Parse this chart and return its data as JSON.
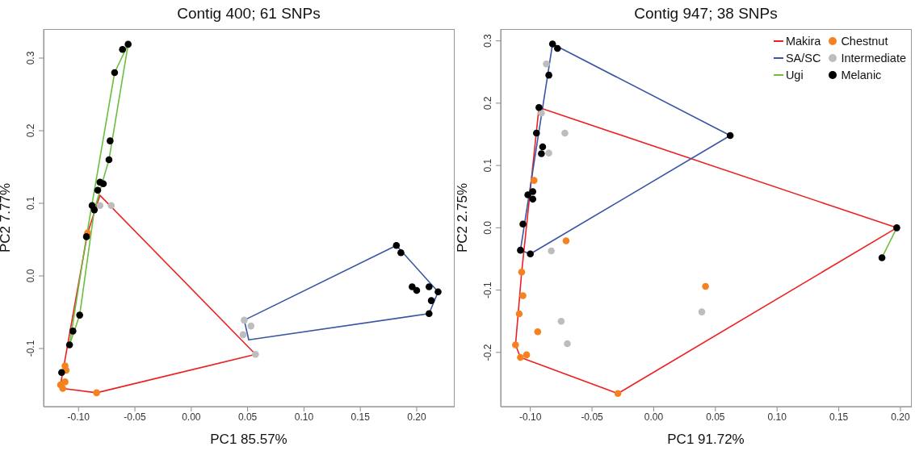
{
  "chart_data": [
    {
      "type": "scatter",
      "title": "Contig 400; 61 SNPs",
      "xlabel": "PC1 85.57%",
      "ylabel": "PC2 7.77%",
      "marker": "circle",
      "legend": false,
      "xlim": [
        -0.131,
        0.233
      ],
      "ylim": [
        -0.18,
        0.34
      ],
      "xticks": [
        {
          "value": -0.1,
          "label": "-0.10"
        },
        {
          "value": -0.05,
          "label": "-0.05"
        },
        {
          "value": 0,
          "label": "0.00"
        },
        {
          "value": 0.05,
          "label": "0.05"
        },
        {
          "value": 0.1,
          "label": "0.10"
        },
        {
          "value": 0.15,
          "label": "0.15"
        },
        {
          "value": 0.2,
          "label": "0.20"
        }
      ],
      "yticks": [
        -0.1,
        {
          "value": 0,
          "label": "0.0"
        },
        0.1,
        0.2,
        0.3
      ],
      "series": [
        {
          "color": "#f5821f",
          "x": [
            -0.092,
            -0.112,
            -0.111,
            -0.112,
            -0.116,
            -0.114,
            -0.084
          ],
          "values": [
            0.059,
            -0.124,
            -0.13,
            -0.146,
            -0.15,
            -0.155,
            -0.161
          ]
        },
        {
          "color": "#bdbdbd",
          "x": [
            -0.081,
            -0.071,
            0.047,
            0.053,
            0.046,
            0.057
          ],
          "values": [
            0.097,
            0.097,
            -0.061,
            -0.069,
            -0.081,
            -0.108
          ]
        },
        {
          "color": "#000000",
          "x": [
            -0.056,
            -0.061,
            -0.068,
            -0.072,
            -0.073,
            -0.081,
            -0.078,
            -0.083,
            -0.088,
            -0.086,
            -0.093,
            -0.099,
            -0.105,
            -0.108,
            -0.115,
            0.182,
            0.186,
            0.196,
            0.2,
            0.211,
            0.219,
            0.213,
            0.211
          ],
          "values": [
            0.319,
            0.312,
            0.28,
            0.186,
            0.16,
            0.129,
            0.127,
            0.118,
            0.097,
            0.091,
            0.054,
            -0.054,
            -0.076,
            -0.095,
            -0.133,
            0.042,
            0.032,
            -0.015,
            -0.02,
            -0.015,
            -0.022,
            -0.034,
            -0.052
          ]
        },
        {
          "type": "line",
          "marker": "none",
          "color": "#ee2020",
          "x": [
            -0.116,
            -0.092,
            -0.081,
            0.057
          ],
          "values": [
            -0.15,
            0.059,
            0.111,
            -0.108
          ]
        },
        {
          "type": "line",
          "marker": "none",
          "color": "#ee2020",
          "x": [
            -0.116,
            -0.114,
            -0.084,
            0.057
          ],
          "values": [
            -0.15,
            -0.155,
            -0.161,
            -0.108
          ]
        },
        {
          "type": "line",
          "marker": "none",
          "color": "#3a55a4",
          "x": [
            0.047,
            0.182,
            0.219
          ],
          "values": [
            -0.061,
            0.042,
            -0.022
          ]
        },
        {
          "type": "line",
          "marker": "none",
          "color": "#3a55a4",
          "x": [
            0.047,
            0.051,
            0.211,
            0.219
          ],
          "values": [
            -0.061,
            -0.088,
            -0.052,
            -0.022
          ]
        },
        {
          "type": "line",
          "marker": "none",
          "color": "#6abf40",
          "x": [
            -0.108,
            -0.093,
            -0.068,
            -0.056
          ],
          "values": [
            -0.095,
            0.054,
            0.28,
            0.319
          ]
        },
        {
          "type": "line",
          "marker": "none",
          "color": "#6abf40",
          "x": [
            -0.108,
            -0.099,
            -0.086,
            -0.073,
            -0.056
          ],
          "values": [
            -0.095,
            -0.054,
            0.091,
            0.16,
            0.319
          ]
        }
      ]
    },
    {
      "type": "scatter",
      "title": "Contig 947; 38 SNPs",
      "xlabel": "PC1 91.72%",
      "ylabel": "PC2 2.75%",
      "marker": "circle",
      "legend": "top right",
      "xlim": [
        -0.124,
        0.2085
      ],
      "ylim": [
        -0.287,
        0.319
      ],
      "xticks": [
        {
          "value": -0.1,
          "label": "-0.10"
        },
        {
          "value": -0.05,
          "label": "-0.05"
        },
        {
          "value": 0,
          "label": "0.00"
        },
        {
          "value": 0.05,
          "label": "0.05"
        },
        {
          "value": 0.1,
          "label": "0.10"
        },
        {
          "value": 0.15,
          "label": "0.15"
        },
        {
          "value": 0.2,
          "label": "0.20"
        }
      ],
      "yticks": [
        -0.2,
        -0.1,
        {
          "value": 0,
          "label": "0.0"
        },
        0.1,
        0.2,
        0.3
      ],
      "series": [
        {
          "name": "Chestnut",
          "color": "#f5821f",
          "x": [
            -0.097,
            -0.071,
            -0.107,
            -0.106,
            -0.109,
            -0.094,
            -0.112,
            -0.103,
            -0.108,
            -0.029,
            0.042
          ],
          "values": [
            0.076,
            -0.021,
            -0.071,
            -0.109,
            -0.138,
            -0.167,
            -0.188,
            -0.204,
            -0.208,
            -0.266,
            -0.094
          ]
        },
        {
          "name": "Intermediate",
          "color": "#bdbdbd",
          "x": [
            -0.087,
            -0.091,
            -0.072,
            -0.085,
            -0.083,
            -0.075,
            -0.07,
            0.039
          ],
          "values": [
            0.263,
            0.184,
            0.152,
            0.12,
            -0.037,
            -0.15,
            -0.186,
            -0.135
          ]
        },
        {
          "name": "Melanic",
          "color": "#000000",
          "x": [
            -0.082,
            -0.078,
            -0.085,
            -0.093,
            -0.095,
            -0.09,
            -0.091,
            -0.098,
            -0.102,
            -0.098,
            -0.106,
            -0.108,
            -0.1,
            0.062,
            0.197,
            0.185
          ],
          "values": [
            0.295,
            0.288,
            0.245,
            0.193,
            0.152,
            0.13,
            0.119,
            0.058,
            0.053,
            0.046,
            0.006,
            -0.036,
            -0.042,
            0.148,
            0,
            -0.048
          ]
        },
        {
          "name": "Makira",
          "type": "line",
          "marker": "none",
          "color": "#ee2020",
          "x": [
            -0.112,
            -0.107,
            -0.093,
            0.197
          ],
          "values": [
            -0.188,
            -0.071,
            0.193,
            0
          ]
        },
        {
          "type": "line",
          "marker": "none",
          "color": "#ee2020",
          "x": [
            -0.112,
            -0.108,
            -0.029,
            0.197
          ],
          "values": [
            -0.188,
            -0.208,
            -0.266,
            0
          ]
        },
        {
          "name": "SA/SC",
          "type": "line",
          "marker": "none",
          "color": "#3a55a4",
          "x": [
            -0.108,
            -0.082,
            0.062
          ],
          "values": [
            -0.036,
            0.295,
            0.148
          ]
        },
        {
          "type": "line",
          "marker": "none",
          "color": "#3a55a4",
          "x": [
            -0.108,
            -0.1,
            0.062
          ],
          "values": [
            -0.036,
            -0.042,
            0.148
          ]
        },
        {
          "name": "Ugi",
          "type": "line",
          "marker": "none",
          "color": "#6abf40",
          "x": [
            0.185,
            0.197
          ],
          "values": [
            -0.048,
            0
          ]
        }
      ]
    }
  ]
}
